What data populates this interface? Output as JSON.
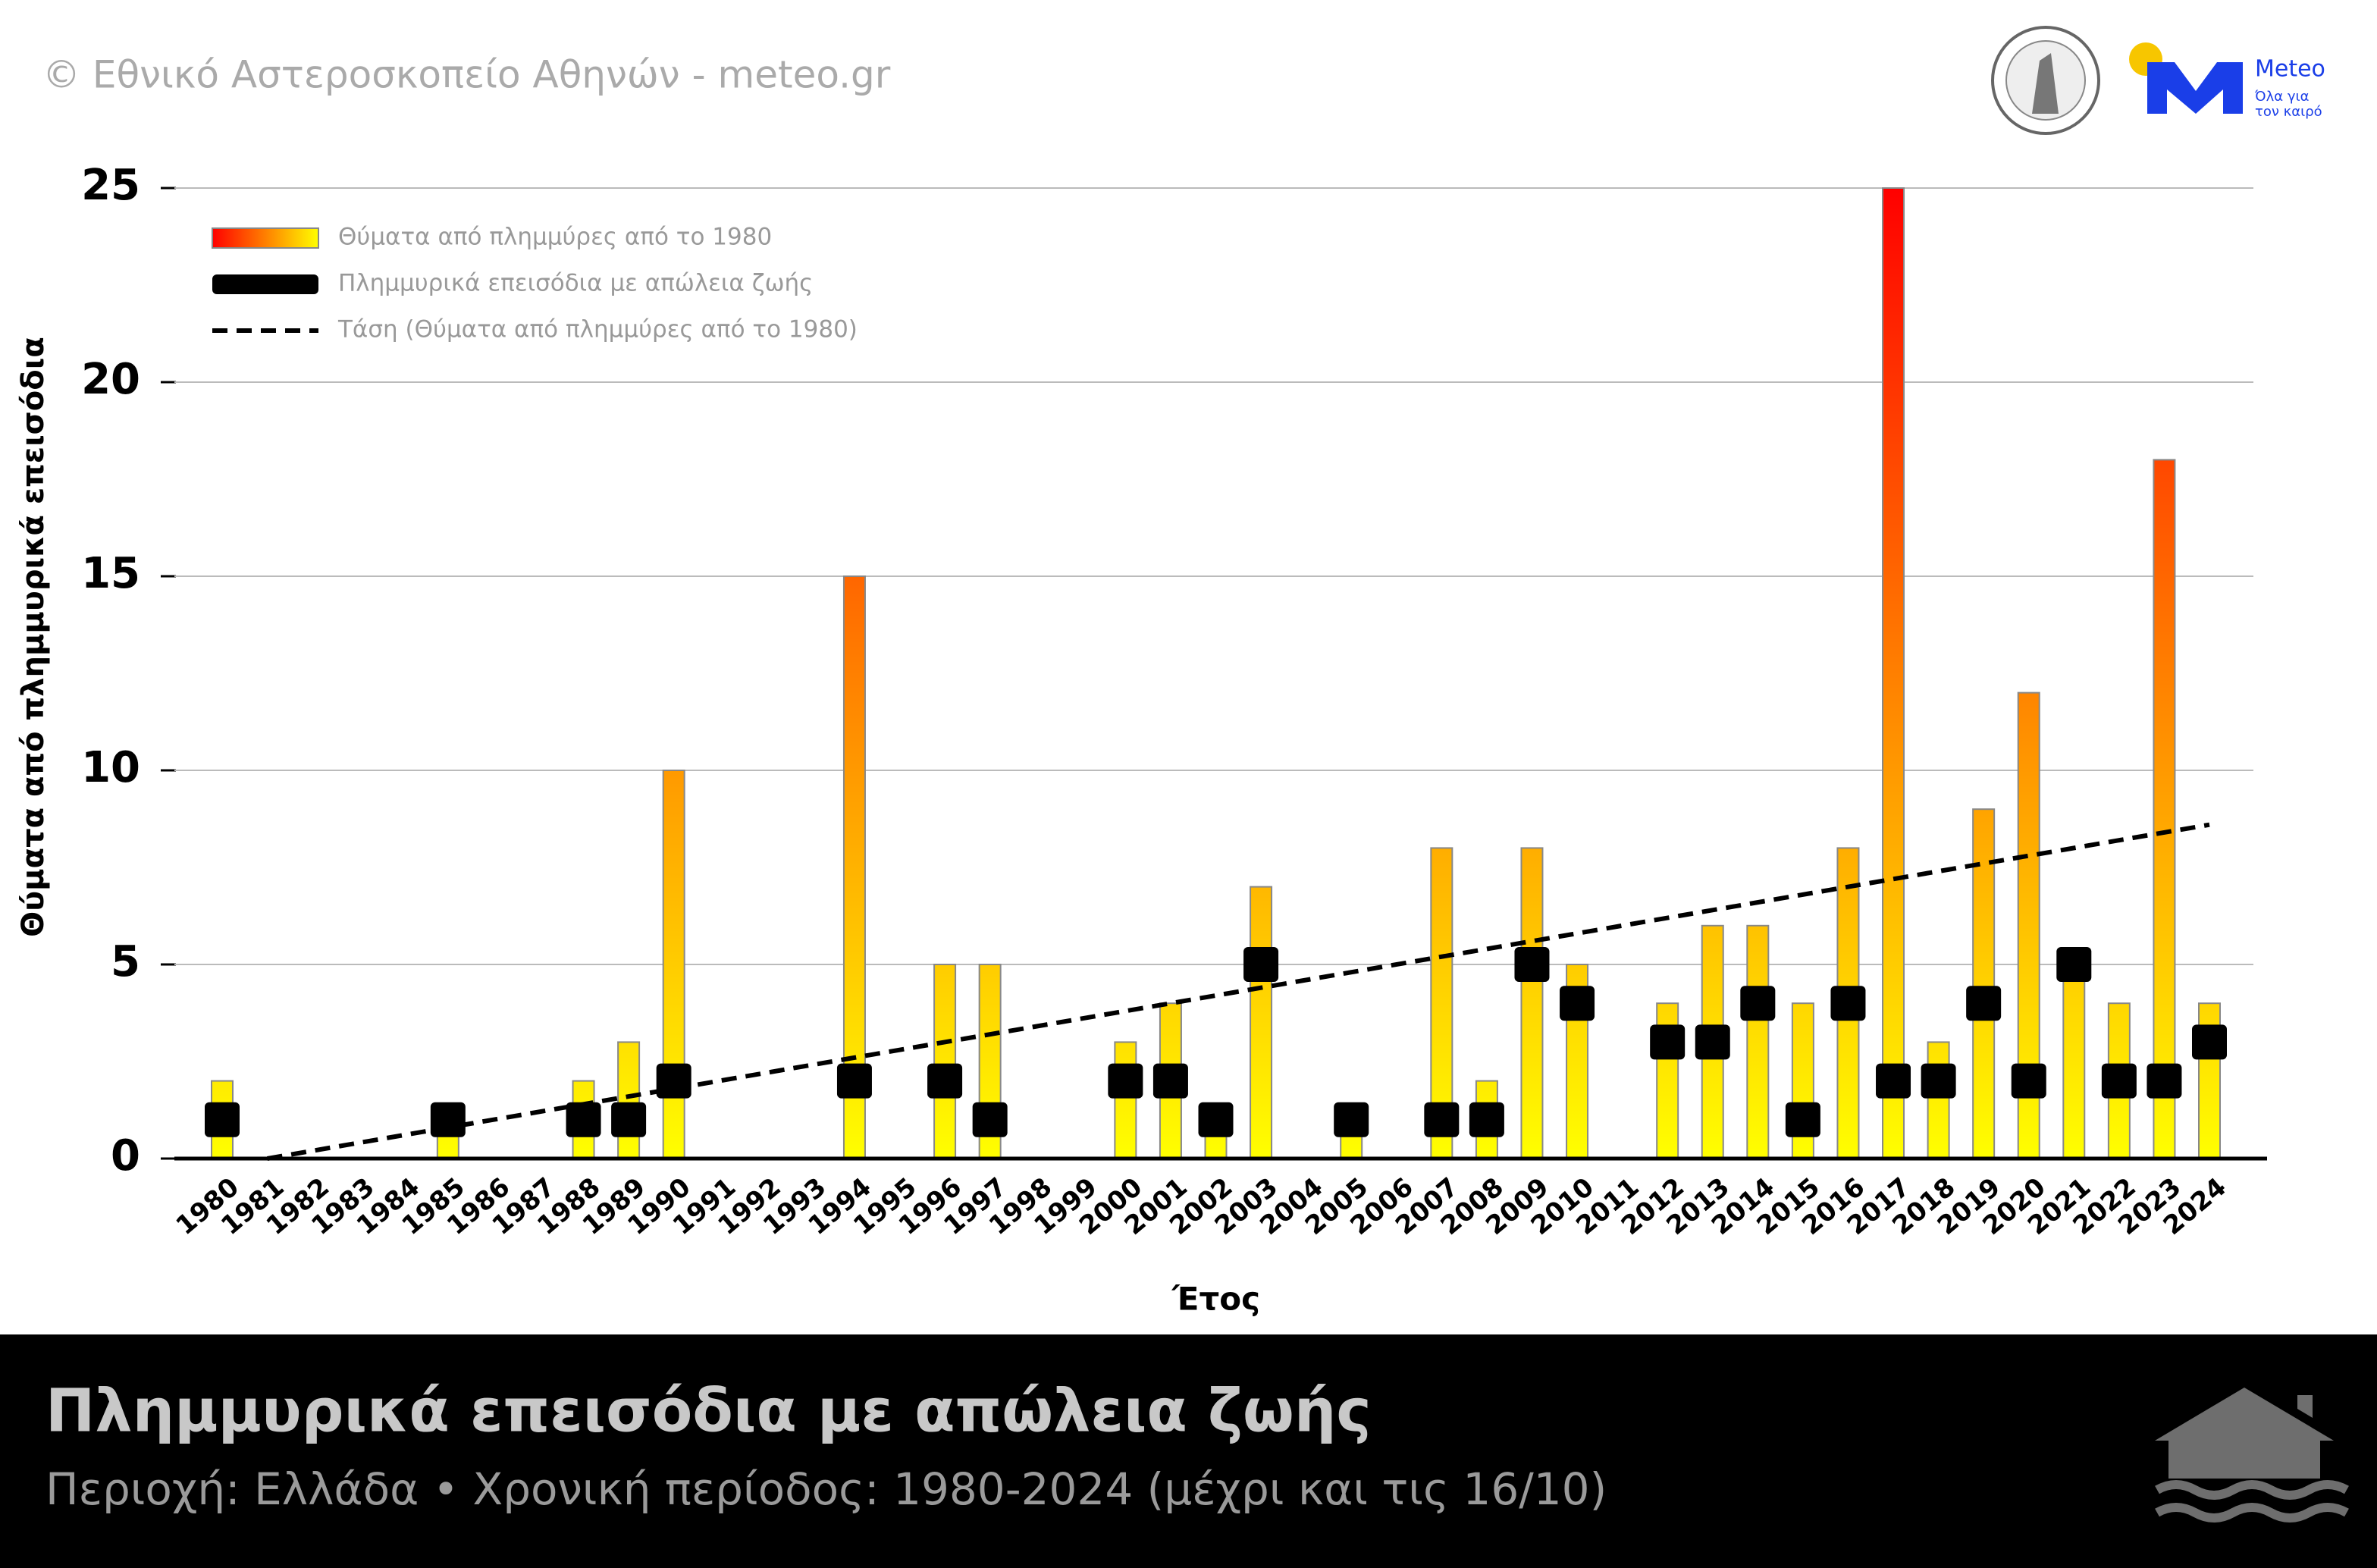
{
  "chart_data": {
    "type": "bar",
    "credit": "© Εθνικό Αστεροσκοπείο Αθηνών - meteo.gr",
    "logo_name": "Meteo",
    "logo_tagline": [
      "Όλα για",
      "τον καιρό"
    ],
    "title": "Πλημμυρικά επεισόδια με απώλεια ζωής",
    "subtitle": "Περιοχή: Ελλάδα • Χρονική περίοδος: 1980-2024 (μέχρι και τις 16/10)",
    "xlabel": "Έτος",
    "ylabel": "Θύματα από πλημμυρικά επεισόδια",
    "categories": [
      "1980",
      "1981",
      "1982",
      "1983",
      "1984",
      "1985",
      "1986",
      "1987",
      "1988",
      "1989",
      "1990",
      "1991",
      "1992",
      "1993",
      "1994",
      "1995",
      "1996",
      "1997",
      "1998",
      "1999",
      "2000",
      "2001",
      "2002",
      "2003",
      "2004",
      "2005",
      "2006",
      "2007",
      "2008",
      "2009",
      "2010",
      "2011",
      "2012",
      "2013",
      "2014",
      "2015",
      "2016",
      "2017",
      "2018",
      "2019",
      "2020",
      "2021",
      "2022",
      "2023",
      "2024"
    ],
    "series": [
      {
        "name": "Θύματα από πλημμύρες από το 1980",
        "kind": "bar",
        "colors": [
          "#ff0000",
          "#ffff00"
        ],
        "values": [
          2,
          0,
          0,
          0,
          0,
          1,
          0,
          0,
          2,
          3,
          10,
          0,
          0,
          0,
          15,
          0,
          5,
          5,
          0,
          0,
          3,
          4,
          1,
          7,
          0,
          1,
          0,
          8,
          2,
          8,
          5,
          0,
          4,
          6,
          6,
          4,
          8,
          25,
          3,
          9,
          12,
          5,
          4,
          18,
          4
        ]
      },
      {
        "name": "Πλημμυρικά επεισόδια με απώλεια ζωής",
        "kind": "marker",
        "color": "#000000",
        "values": [
          1,
          null,
          null,
          null,
          null,
          1,
          null,
          null,
          1,
          1,
          2,
          null,
          null,
          null,
          2,
          null,
          2,
          1,
          null,
          null,
          2,
          2,
          1,
          5,
          null,
          1,
          null,
          1,
          1,
          5,
          4,
          null,
          3,
          3,
          4,
          1,
          4,
          2,
          2,
          4,
          2,
          5,
          2,
          2,
          3
        ]
      },
      {
        "name": "Τάση (Θύματα από πλημμύρες από το 1980)",
        "kind": "trend",
        "color": "#000000",
        "x": [
          "1981",
          "2024"
        ],
        "values": [
          0,
          8.6
        ]
      }
    ],
    "ylim": [
      0,
      25
    ],
    "yticks": [
      0,
      5,
      10,
      15,
      20,
      25
    ],
    "grid": true,
    "legend": "upper left"
  }
}
